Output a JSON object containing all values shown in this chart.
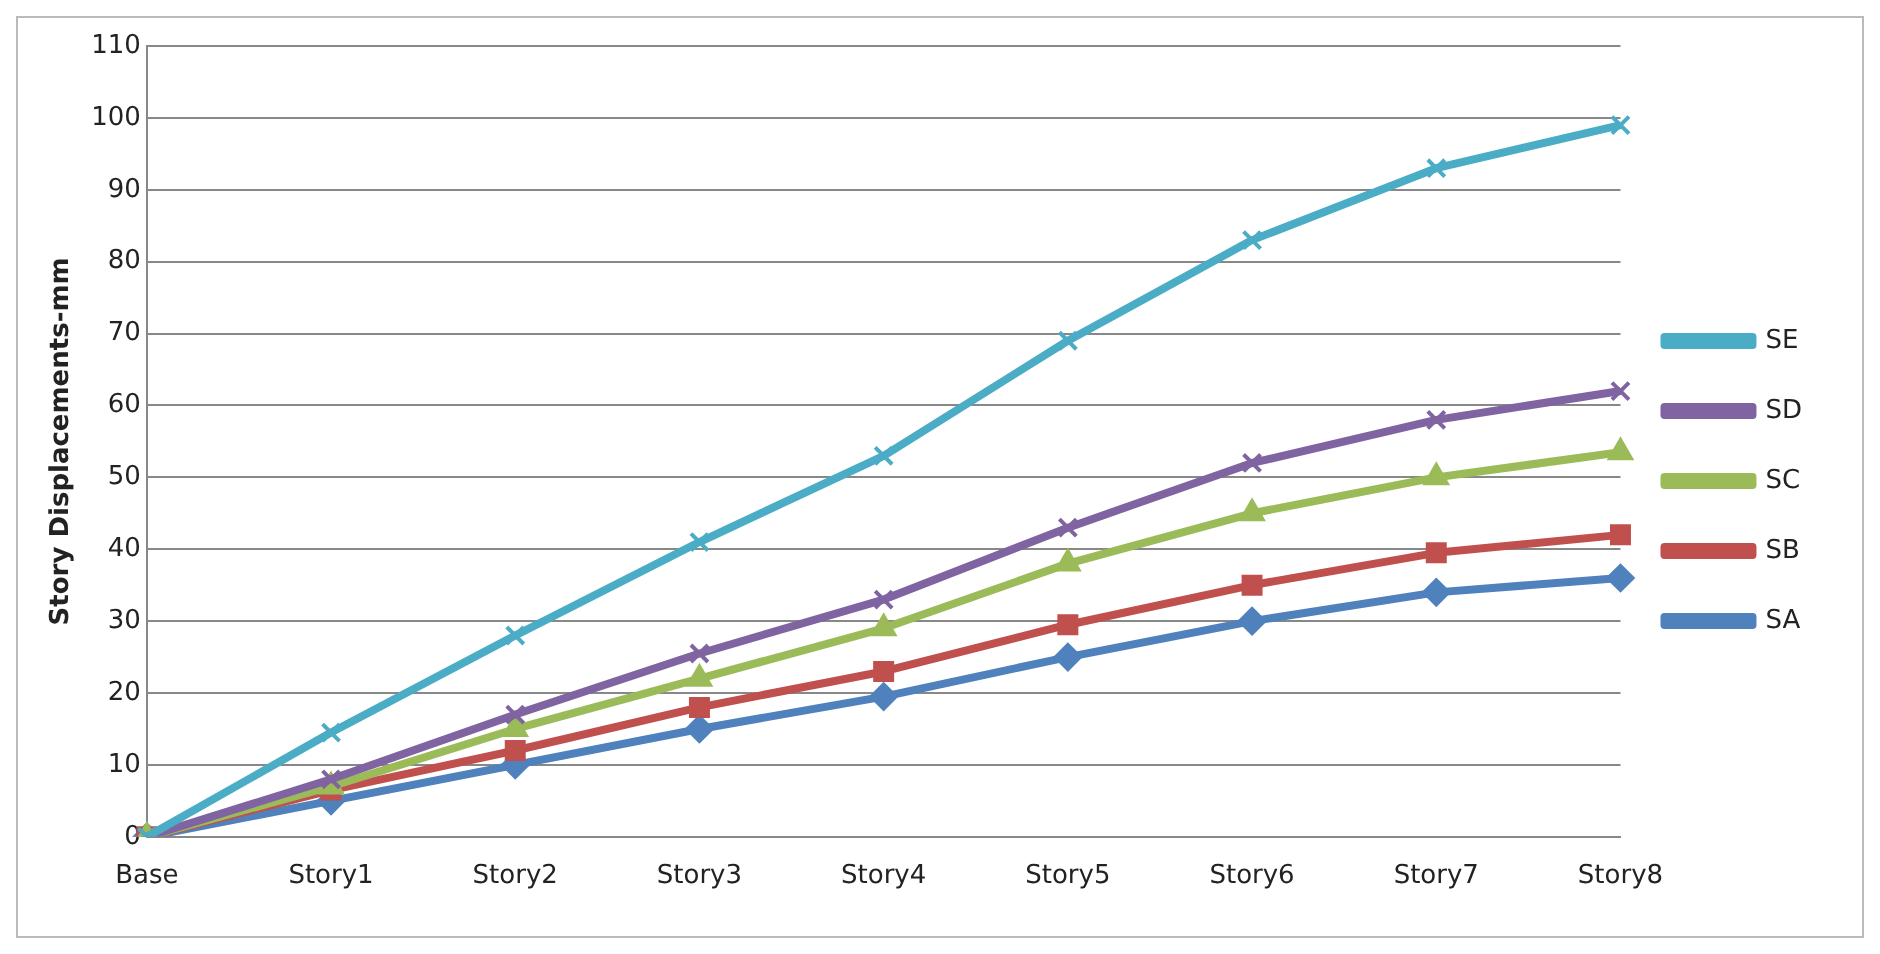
{
  "chart_data": {
    "type": "line",
    "ylabel": "Story Displacements-mm",
    "categories": [
      "Base",
      "Story1",
      "Story2",
      "Story3",
      "Story4",
      "Story5",
      "Story6",
      "Story7",
      "Story8"
    ],
    "ylim": [
      0,
      110
    ],
    "yticks": [
      0,
      10,
      20,
      30,
      40,
      50,
      60,
      70,
      80,
      90,
      100,
      110
    ],
    "grid": "y",
    "legend": "right",
    "line_style": "solid",
    "series": [
      {
        "name": "SE",
        "color": "#4bacc6",
        "marker": "cross",
        "values": [
          0,
          14.5,
          28,
          41,
          53,
          69,
          83,
          93,
          99
        ]
      },
      {
        "name": "SD",
        "color": "#8064a2",
        "marker": "cross",
        "values": [
          0,
          8,
          17,
          25.5,
          33,
          43,
          52,
          58,
          62
        ]
      },
      {
        "name": "SC",
        "color": "#9bbb59",
        "marker": "triangle",
        "values": [
          0,
          7,
          15,
          22,
          29,
          38,
          45,
          50,
          53.5
        ]
      },
      {
        "name": "SB",
        "color": "#c0504d",
        "marker": "square",
        "values": [
          0,
          6.5,
          12,
          18,
          23,
          29.5,
          35,
          39.5,
          42
        ]
      },
      {
        "name": "SA",
        "color": "#4f81bd",
        "marker": "diamond",
        "values": [
          0,
          5,
          10,
          15,
          19.5,
          25,
          30,
          34,
          36
        ]
      }
    ]
  }
}
